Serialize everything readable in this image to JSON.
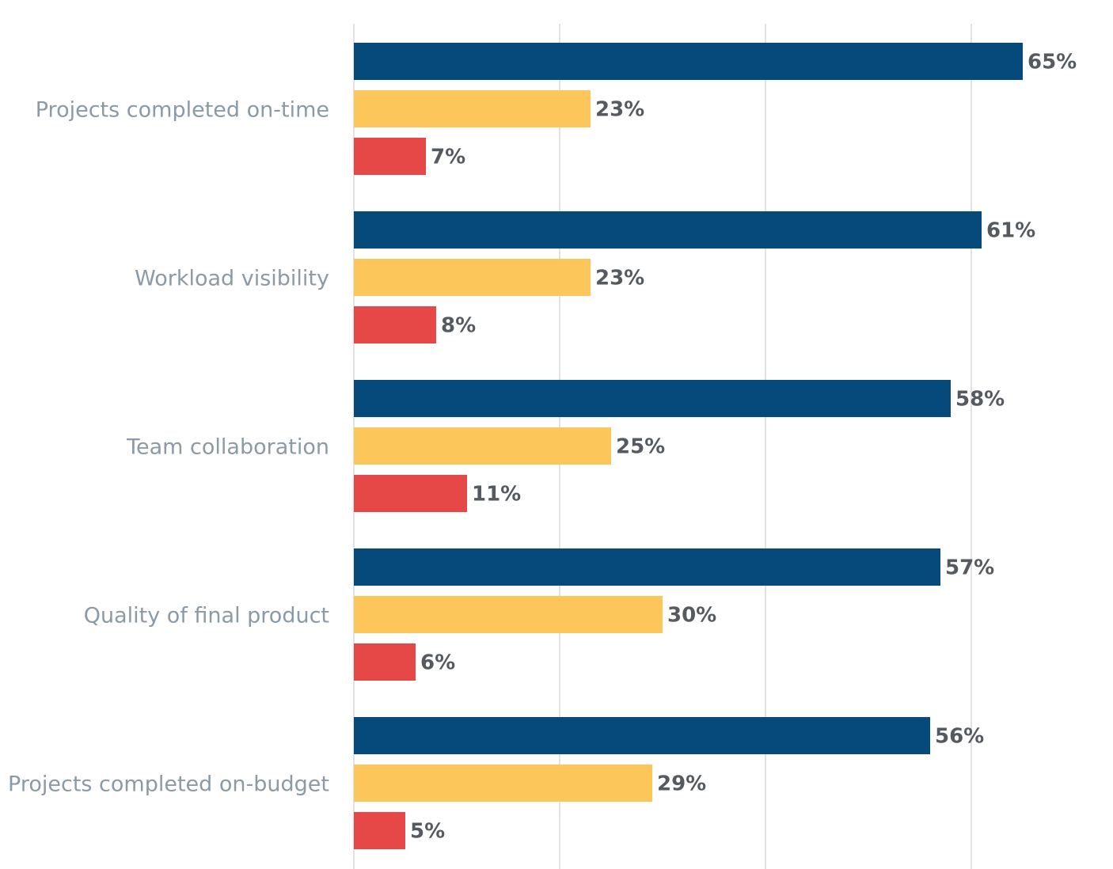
{
  "chart_data": {
    "type": "bar",
    "orientation": "horizontal",
    "categories": [
      "Projects completed on-time",
      "Workload visibility",
      "Team collaboration",
      "Quality of final product",
      "Projects completed on-budget"
    ],
    "series": [
      {
        "color": "#054a7b",
        "values": [
          65,
          61,
          58,
          57,
          56
        ],
        "labels": [
          "65%",
          "61%",
          "58%",
          "57%",
          "56%"
        ]
      },
      {
        "color": "#fdc65b",
        "values": [
          23,
          23,
          25,
          30,
          29
        ],
        "labels": [
          "23%",
          "23%",
          "25%",
          "30%",
          "29%"
        ]
      },
      {
        "color": "#e64848",
        "values": [
          7,
          8,
          11,
          6,
          5
        ],
        "labels": [
          "7%",
          "8%",
          "11%",
          "6%",
          "5%"
        ]
      }
    ],
    "xlim": [
      0,
      65
    ],
    "gridlines": [
      0,
      20,
      40,
      60
    ],
    "grid": true,
    "legend": "none",
    "title": "",
    "xlabel": "",
    "ylabel": ""
  }
}
